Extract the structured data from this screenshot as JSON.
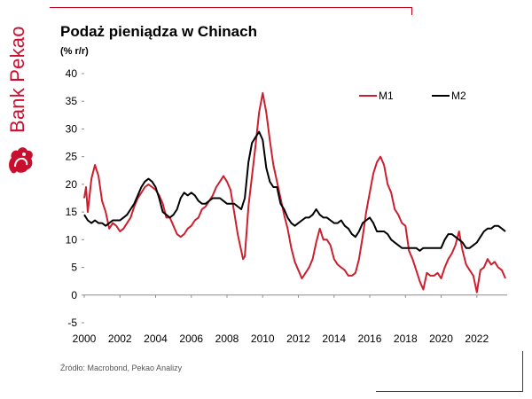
{
  "brand": {
    "name": "Bank Pekao",
    "accent": "#c8102e"
  },
  "title": "Podaż pieniądza w Chinach",
  "subtitle": "(% r/r)",
  "source": "Źródło: Macrobond, Pekao Analizy",
  "chart_data": {
    "type": "line",
    "xlim": [
      2000,
      2023.7
    ],
    "ylim": [
      -5,
      40
    ],
    "x_ticks": [
      "2000",
      "2002",
      "2004",
      "2006",
      "2008",
      "2010",
      "2012",
      "2014",
      "2016",
      "2018",
      "2020",
      "2022"
    ],
    "y_ticks": [
      "-5",
      "0",
      "5",
      "10",
      "15",
      "20",
      "25",
      "30",
      "35",
      "40"
    ],
    "legend_position": "top-right",
    "grid": false,
    "series": [
      {
        "name": "M1",
        "color": "#cc1f2f",
        "points": [
          [
            2000.0,
            17.5
          ],
          [
            2000.1,
            19.5
          ],
          [
            2000.2,
            15.0
          ],
          [
            2000.4,
            21.0
          ],
          [
            2000.6,
            23.5
          ],
          [
            2000.8,
            21.5
          ],
          [
            2001.0,
            17.0
          ],
          [
            2001.2,
            15.0
          ],
          [
            2001.4,
            12.0
          ],
          [
            2001.6,
            13.0
          ],
          [
            2001.8,
            12.5
          ],
          [
            2002.0,
            11.5
          ],
          [
            2002.2,
            12.0
          ],
          [
            2002.4,
            13.0
          ],
          [
            2002.6,
            14.0
          ],
          [
            2002.8,
            16.0
          ],
          [
            2003.0,
            17.5
          ],
          [
            2003.2,
            18.5
          ],
          [
            2003.4,
            19.5
          ],
          [
            2003.6,
            20.0
          ],
          [
            2003.8,
            19.5
          ],
          [
            2004.0,
            19.0
          ],
          [
            2004.2,
            18.0
          ],
          [
            2004.4,
            16.5
          ],
          [
            2004.6,
            14.0
          ],
          [
            2004.8,
            14.0
          ],
          [
            2005.0,
            12.5
          ],
          [
            2005.2,
            11.0
          ],
          [
            2005.4,
            10.5
          ],
          [
            2005.6,
            11.0
          ],
          [
            2005.8,
            12.0
          ],
          [
            2006.0,
            12.5
          ],
          [
            2006.2,
            13.5
          ],
          [
            2006.4,
            14.0
          ],
          [
            2006.6,
            15.5
          ],
          [
            2006.8,
            16.0
          ],
          [
            2007.0,
            17.0
          ],
          [
            2007.2,
            18.0
          ],
          [
            2007.4,
            19.5
          ],
          [
            2007.6,
            20.5
          ],
          [
            2007.8,
            21.5
          ],
          [
            2008.0,
            20.5
          ],
          [
            2008.2,
            19.0
          ],
          [
            2008.4,
            15.0
          ],
          [
            2008.6,
            11.0
          ],
          [
            2008.8,
            8.0
          ],
          [
            2008.9,
            6.5
          ],
          [
            2009.0,
            7.0
          ],
          [
            2009.2,
            16.0
          ],
          [
            2009.4,
            21.5
          ],
          [
            2009.6,
            27.0
          ],
          [
            2009.8,
            33.0
          ],
          [
            2010.0,
            36.5
          ],
          [
            2010.2,
            33.0
          ],
          [
            2010.4,
            28.0
          ],
          [
            2010.6,
            23.5
          ],
          [
            2010.8,
            20.5
          ],
          [
            2011.0,
            17.5
          ],
          [
            2011.2,
            14.5
          ],
          [
            2011.4,
            12.0
          ],
          [
            2011.6,
            8.5
          ],
          [
            2011.8,
            6.0
          ],
          [
            2012.0,
            4.5
          ],
          [
            2012.2,
            3.0
          ],
          [
            2012.4,
            4.0
          ],
          [
            2012.6,
            5.0
          ],
          [
            2012.8,
            6.5
          ],
          [
            2013.0,
            9.5
          ],
          [
            2013.2,
            12.0
          ],
          [
            2013.4,
            10.0
          ],
          [
            2013.6,
            10.0
          ],
          [
            2013.8,
            9.0
          ],
          [
            2014.0,
            6.5
          ],
          [
            2014.2,
            5.5
          ],
          [
            2014.4,
            5.0
          ],
          [
            2014.6,
            4.5
          ],
          [
            2014.8,
            3.5
          ],
          [
            2015.0,
            3.5
          ],
          [
            2015.2,
            4.0
          ],
          [
            2015.4,
            6.5
          ],
          [
            2015.6,
            10.5
          ],
          [
            2015.8,
            15.0
          ],
          [
            2016.0,
            18.5
          ],
          [
            2016.2,
            22.0
          ],
          [
            2016.4,
            24.0
          ],
          [
            2016.6,
            25.0
          ],
          [
            2016.8,
            23.5
          ],
          [
            2017.0,
            20.0
          ],
          [
            2017.2,
            18.5
          ],
          [
            2017.4,
            15.5
          ],
          [
            2017.6,
            14.5
          ],
          [
            2017.8,
            13.0
          ],
          [
            2018.0,
            12.5
          ],
          [
            2018.2,
            8.0
          ],
          [
            2018.4,
            6.5
          ],
          [
            2018.6,
            4.5
          ],
          [
            2018.8,
            2.5
          ],
          [
            2019.0,
            1.0
          ],
          [
            2019.2,
            4.0
          ],
          [
            2019.4,
            3.5
          ],
          [
            2019.6,
            3.5
          ],
          [
            2019.8,
            4.0
          ],
          [
            2020.0,
            3.0
          ],
          [
            2020.2,
            5.0
          ],
          [
            2020.4,
            6.5
          ],
          [
            2020.6,
            7.5
          ],
          [
            2020.8,
            9.0
          ],
          [
            2021.0,
            11.5
          ],
          [
            2021.2,
            8.0
          ],
          [
            2021.4,
            5.5
          ],
          [
            2021.6,
            4.5
          ],
          [
            2021.8,
            3.5
          ],
          [
            2022.0,
            0.5
          ],
          [
            2022.2,
            4.5
          ],
          [
            2022.4,
            5.0
          ],
          [
            2022.6,
            6.5
          ],
          [
            2022.8,
            5.5
          ],
          [
            2023.0,
            6.0
          ],
          [
            2023.2,
            5.0
          ],
          [
            2023.4,
            4.5
          ],
          [
            2023.6,
            3.0
          ]
        ]
      },
      {
        "name": "M2",
        "color": "#000000",
        "points": [
          [
            2000.0,
            14.5
          ],
          [
            2000.2,
            13.5
          ],
          [
            2000.4,
            13.0
          ],
          [
            2000.6,
            13.5
          ],
          [
            2000.8,
            13.0
          ],
          [
            2001.0,
            13.0
          ],
          [
            2001.2,
            12.5
          ],
          [
            2001.4,
            13.0
          ],
          [
            2001.6,
            13.5
          ],
          [
            2001.8,
            13.5
          ],
          [
            2002.0,
            13.5
          ],
          [
            2002.2,
            14.0
          ],
          [
            2002.4,
            14.5
          ],
          [
            2002.6,
            15.5
          ],
          [
            2002.8,
            16.5
          ],
          [
            2003.0,
            18.0
          ],
          [
            2003.2,
            19.5
          ],
          [
            2003.4,
            20.5
          ],
          [
            2003.6,
            21.0
          ],
          [
            2003.8,
            20.5
          ],
          [
            2004.0,
            19.5
          ],
          [
            2004.2,
            17.5
          ],
          [
            2004.4,
            15.0
          ],
          [
            2004.6,
            14.5
          ],
          [
            2004.8,
            14.0
          ],
          [
            2005.0,
            14.5
          ],
          [
            2005.2,
            15.5
          ],
          [
            2005.4,
            17.5
          ],
          [
            2005.6,
            18.5
          ],
          [
            2005.8,
            18.0
          ],
          [
            2006.0,
            18.5
          ],
          [
            2006.2,
            18.0
          ],
          [
            2006.4,
            17.0
          ],
          [
            2006.6,
            16.5
          ],
          [
            2006.8,
            16.5
          ],
          [
            2007.0,
            17.0
          ],
          [
            2007.2,
            17.5
          ],
          [
            2007.4,
            17.5
          ],
          [
            2007.6,
            17.5
          ],
          [
            2007.8,
            17.0
          ],
          [
            2008.0,
            16.5
          ],
          [
            2008.2,
            16.5
          ],
          [
            2008.4,
            16.5
          ],
          [
            2008.6,
            16.0
          ],
          [
            2008.8,
            15.5
          ],
          [
            2009.0,
            17.5
          ],
          [
            2009.2,
            24.0
          ],
          [
            2009.4,
            27.5
          ],
          [
            2009.6,
            28.5
          ],
          [
            2009.8,
            29.5
          ],
          [
            2010.0,
            28.0
          ],
          [
            2010.2,
            23.0
          ],
          [
            2010.4,
            20.5
          ],
          [
            2010.6,
            19.5
          ],
          [
            2010.8,
            19.5
          ],
          [
            2011.0,
            16.5
          ],
          [
            2011.2,
            15.5
          ],
          [
            2011.4,
            14.0
          ],
          [
            2011.6,
            13.0
          ],
          [
            2011.8,
            12.5
          ],
          [
            2012.0,
            13.0
          ],
          [
            2012.2,
            13.5
          ],
          [
            2012.4,
            14.0
          ],
          [
            2012.6,
            14.0
          ],
          [
            2012.8,
            14.5
          ],
          [
            2013.0,
            15.5
          ],
          [
            2013.2,
            14.5
          ],
          [
            2013.4,
            14.0
          ],
          [
            2013.6,
            14.0
          ],
          [
            2013.8,
            13.5
          ],
          [
            2014.0,
            13.0
          ],
          [
            2014.2,
            13.0
          ],
          [
            2014.4,
            13.5
          ],
          [
            2014.6,
            12.5
          ],
          [
            2014.8,
            12.0
          ],
          [
            2015.0,
            11.0
          ],
          [
            2015.2,
            10.5
          ],
          [
            2015.4,
            11.5
          ],
          [
            2015.6,
            13.0
          ],
          [
            2015.8,
            13.5
          ],
          [
            2016.0,
            14.0
          ],
          [
            2016.2,
            13.0
          ],
          [
            2016.4,
            11.5
          ],
          [
            2016.6,
            11.5
          ],
          [
            2016.8,
            11.5
          ],
          [
            2017.0,
            11.0
          ],
          [
            2017.2,
            10.0
          ],
          [
            2017.4,
            9.5
          ],
          [
            2017.6,
            9.0
          ],
          [
            2017.8,
            8.5
          ],
          [
            2018.0,
            8.5
          ],
          [
            2018.2,
            8.5
          ],
          [
            2018.4,
            8.5
          ],
          [
            2018.6,
            8.5
          ],
          [
            2018.8,
            8.0
          ],
          [
            2019.0,
            8.5
          ],
          [
            2019.2,
            8.5
          ],
          [
            2019.4,
            8.5
          ],
          [
            2019.6,
            8.5
          ],
          [
            2019.8,
            8.5
          ],
          [
            2020.0,
            8.5
          ],
          [
            2020.2,
            10.0
          ],
          [
            2020.4,
            11.0
          ],
          [
            2020.6,
            11.0
          ],
          [
            2020.8,
            10.5
          ],
          [
            2021.0,
            10.0
          ],
          [
            2021.2,
            9.5
          ],
          [
            2021.4,
            8.5
          ],
          [
            2021.6,
            8.5
          ],
          [
            2021.8,
            9.0
          ],
          [
            2022.0,
            9.5
          ],
          [
            2022.2,
            10.5
          ],
          [
            2022.4,
            11.5
          ],
          [
            2022.6,
            12.0
          ],
          [
            2022.8,
            12.0
          ],
          [
            2023.0,
            12.5
          ],
          [
            2023.2,
            12.5
          ],
          [
            2023.4,
            12.0
          ],
          [
            2023.6,
            11.5
          ]
        ]
      }
    ]
  }
}
